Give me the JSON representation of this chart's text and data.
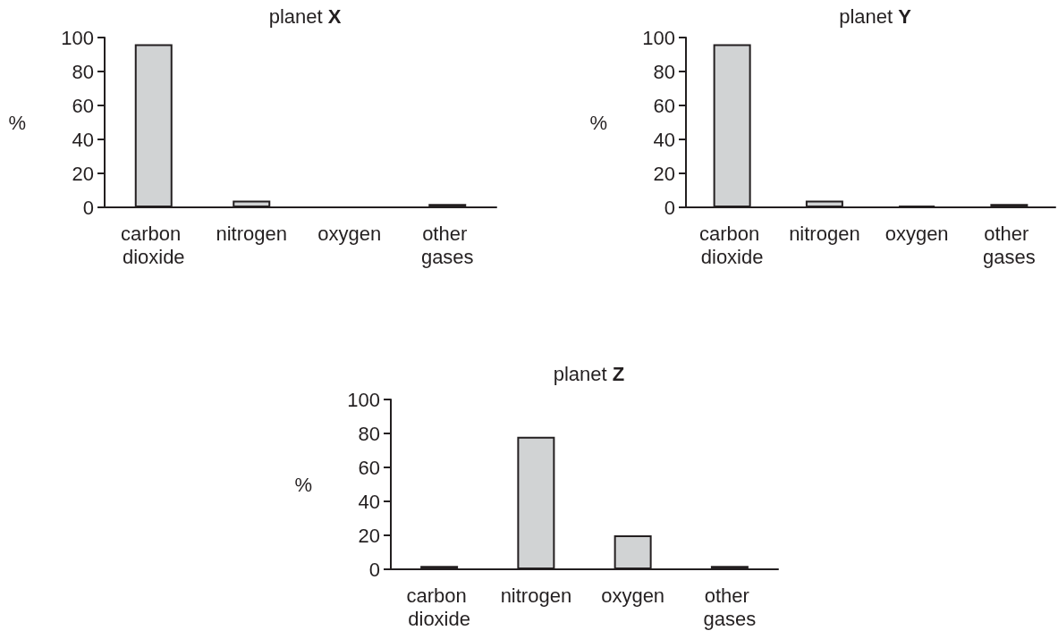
{
  "chart_data": [
    {
      "type": "bar",
      "title": "planet X",
      "ylabel": "%",
      "categories": [
        "carbon dioxide",
        "nitrogen",
        "oxygen",
        "other gases"
      ],
      "values": [
        96,
        4,
        0,
        2
      ],
      "color": "#d1d3d4",
      "ylim": [
        0,
        100
      ],
      "yticks": [
        0,
        20,
        40,
        60,
        80,
        100
      ]
    },
    {
      "type": "bar",
      "title": "planet Y",
      "ylabel": "%",
      "categories": [
        "carbon dioxide",
        "nitrogen",
        "oxygen",
        "other gases"
      ],
      "values": [
        96,
        4,
        1,
        2
      ],
      "colors": [
        "#d1d3d4",
        "#d1d3d4",
        "#231f20",
        "#d1d3d4"
      ],
      "ylim": [
        0,
        100
      ],
      "yticks": [
        0,
        20,
        40,
        60,
        80,
        100
      ]
    },
    {
      "type": "bar",
      "title": "planet Z",
      "ylabel": "%",
      "categories": [
        "carbon dioxide",
        "nitrogen",
        "oxygen",
        "other gases"
      ],
      "values": [
        2,
        78,
        20,
        2
      ],
      "color": "#d1d3d4",
      "ylim": [
        0,
        100
      ],
      "yticks": [
        0,
        20,
        40,
        60,
        80,
        100
      ]
    }
  ]
}
